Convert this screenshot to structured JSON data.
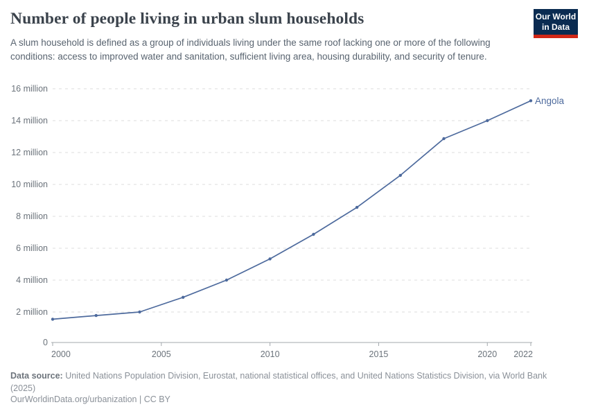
{
  "header": {
    "title": "Number of people living in urban slum households",
    "subtitle": "A slum household is defined as a group of individuals living under the same roof lacking one or more of the following conditions: access to improved water and sanitation, sufficient living area, housing durability, and security of tenure.",
    "logo": {
      "line1": "Our World",
      "line2": "in Data"
    }
  },
  "chart_data": {
    "type": "line",
    "title": "Number of people living in urban slum households",
    "unit": "million people",
    "x": [
      2000,
      2002,
      2004,
      2006,
      2008,
      2010,
      2012,
      2014,
      2016,
      2018,
      2020,
      2022
    ],
    "series": [
      {
        "name": "Angola",
        "color": "#4d6a9d",
        "values": [
          1.55,
          1.78,
          2.0,
          2.92,
          4.0,
          5.33,
          6.87,
          8.56,
          10.57,
          12.87,
          14.0,
          15.25
        ]
      }
    ],
    "xlim": [
      2000,
      2022
    ],
    "ylim": [
      0,
      16
    ],
    "grid": "horizontal-dashed",
    "legend_position": "end-of-line-label",
    "end_label": "Angola",
    "y_ticks": [
      {
        "value": 0,
        "label": "0"
      },
      {
        "value": 2,
        "label": "2 million"
      },
      {
        "value": 4,
        "label": "4 million"
      },
      {
        "value": 6,
        "label": "6 million"
      },
      {
        "value": 8,
        "label": "8 million"
      },
      {
        "value": 10,
        "label": "10 million"
      },
      {
        "value": 12,
        "label": "12 million"
      },
      {
        "value": 14,
        "label": "14 million"
      },
      {
        "value": 16,
        "label": "16 million"
      }
    ],
    "x_ticks": [
      {
        "value": 2000,
        "label": "2000"
      },
      {
        "value": 2005,
        "label": "2005"
      },
      {
        "value": 2010,
        "label": "2010"
      },
      {
        "value": 2015,
        "label": "2015"
      },
      {
        "value": 2020,
        "label": "2020"
      },
      {
        "value": 2022,
        "label": "2022"
      }
    ]
  },
  "footer": {
    "datasource_label": "Data source:",
    "datasource_text": " United Nations Population Division, Eurostat, national statistical offices, and United Nations Statistics Division, via World Bank (2025)",
    "link_line": "OurWorldinData.org/urbanization | CC BY"
  },
  "colors": {
    "line": "#4d6a9d",
    "grid": "#dcdcdc",
    "axis": "#a3a8ad",
    "tick_text": "#6b737b",
    "title_text": "#3b434c",
    "logo_navy": "#0a2b51",
    "logo_red": "#d12717"
  }
}
